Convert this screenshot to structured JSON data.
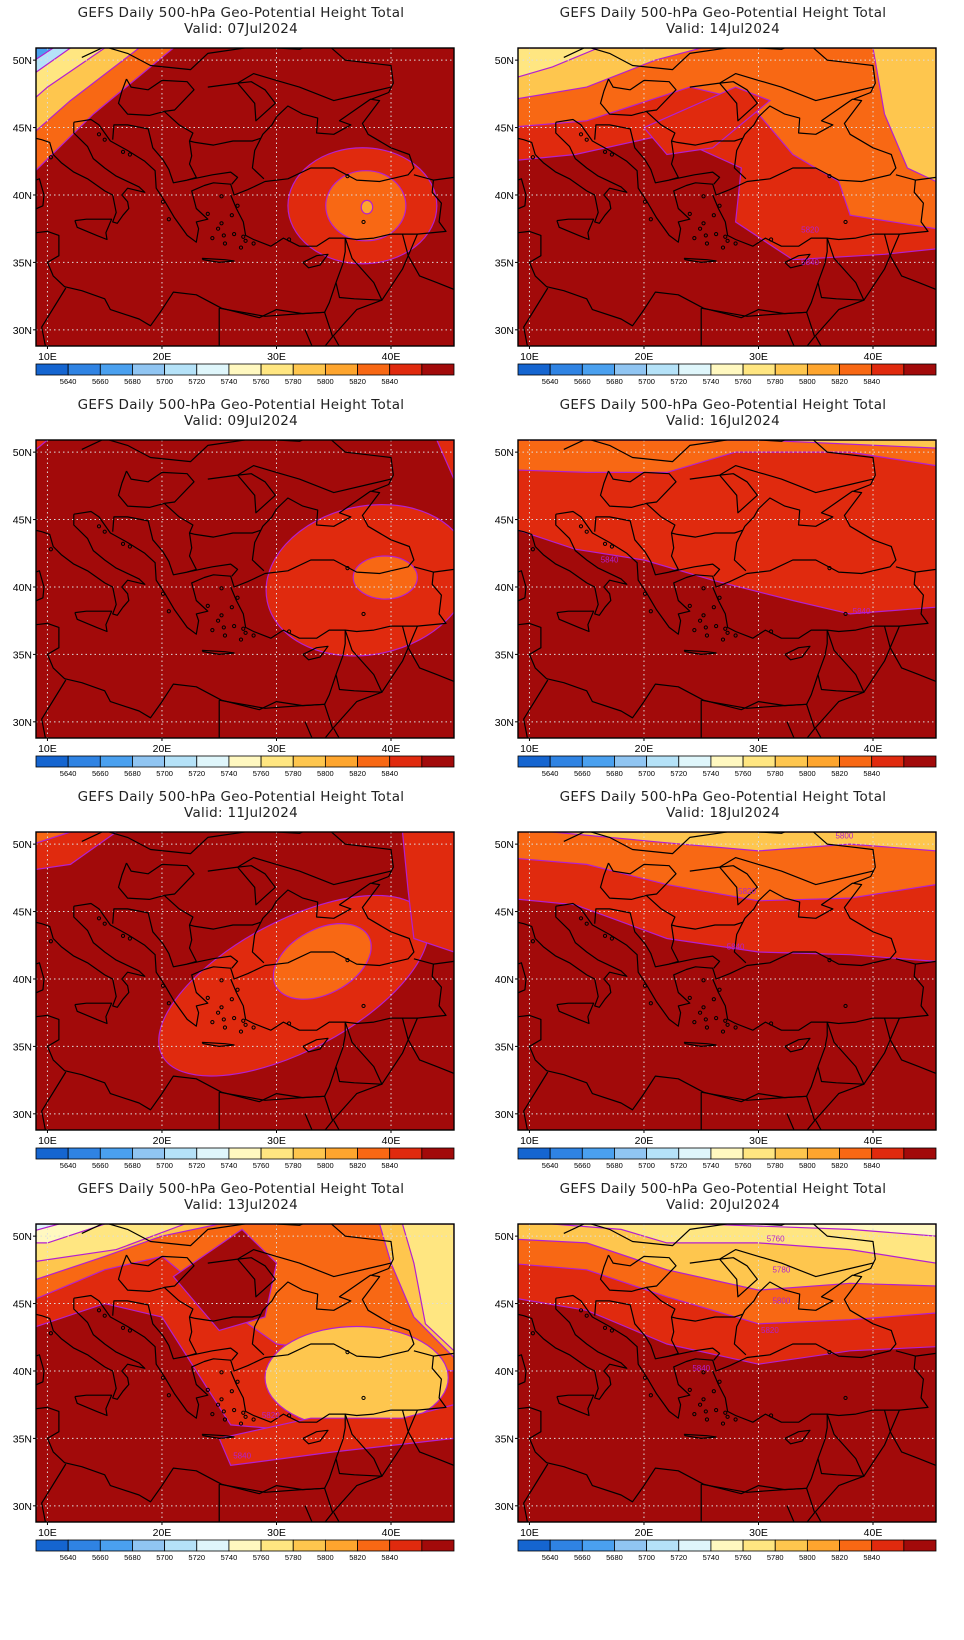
{
  "figure": {
    "panels": [
      {
        "title": "GEFS Daily 500-hPa Geo-Potential Height Total",
        "valid": "Valid: 07Jul2024",
        "contour_labels": []
      },
      {
        "title": "GEFS Daily 500-hPa Geo-Potential Height Total",
        "valid": "Valid: 14Jul2024",
        "contour_labels": [
          "5820",
          "5840"
        ]
      },
      {
        "title": "GEFS Daily 500-hPa Geo-Potential Height Total",
        "valid": "Valid: 09Jul2024",
        "contour_labels": []
      },
      {
        "title": "GEFS Daily 500-hPa Geo-Potential Height Total",
        "valid": "Valid: 16Jul2024",
        "contour_labels": [
          "5840",
          "5840"
        ]
      },
      {
        "title": "GEFS Daily 500-hPa Geo-Potential Height Total",
        "valid": "Valid: 11Jul2024",
        "contour_labels": []
      },
      {
        "title": "GEFS Daily 500-hPa Geo-Potential Height Total",
        "valid": "Valid: 18Jul2024",
        "contour_labels": [
          "5800",
          "5820",
          "5840"
        ]
      },
      {
        "title": "GEFS Daily 500-hPa Geo-Potential Height Total",
        "valid": "Valid: 13Jul2024",
        "contour_labels": [
          "5820",
          "5840"
        ]
      },
      {
        "title": "GEFS Daily 500-hPa Geo-Potential Height Total",
        "valid": "Valid: 20Jul2024",
        "contour_labels": [
          "5760",
          "5780",
          "5800",
          "5820",
          "5840"
        ]
      }
    ],
    "lon_ticks": [
      "10E",
      "20E",
      "30E",
      "40E"
    ],
    "lat_ticks": [
      "50N",
      "45N",
      "40N",
      "35N",
      "30N"
    ],
    "colorbar": {
      "colors": [
        "#1565d0",
        "#2f83e3",
        "#4aa0ef",
        "#90c5f2",
        "#b5e2f8",
        "#dff6fb",
        "#fff8c0",
        "#ffe681",
        "#fec64e",
        "#fea52e",
        "#f86814",
        "#e02a0e",
        "#a20a0a"
      ],
      "labels": [
        "5640",
        "5660",
        "5680",
        "5700",
        "5720",
        "5740",
        "5760",
        "5780",
        "5800",
        "5820",
        "5840"
      ]
    },
    "colors": {
      "contour": "#b31fd1",
      "coast": "#000000",
      "grid": "#dddddd"
    }
  }
}
